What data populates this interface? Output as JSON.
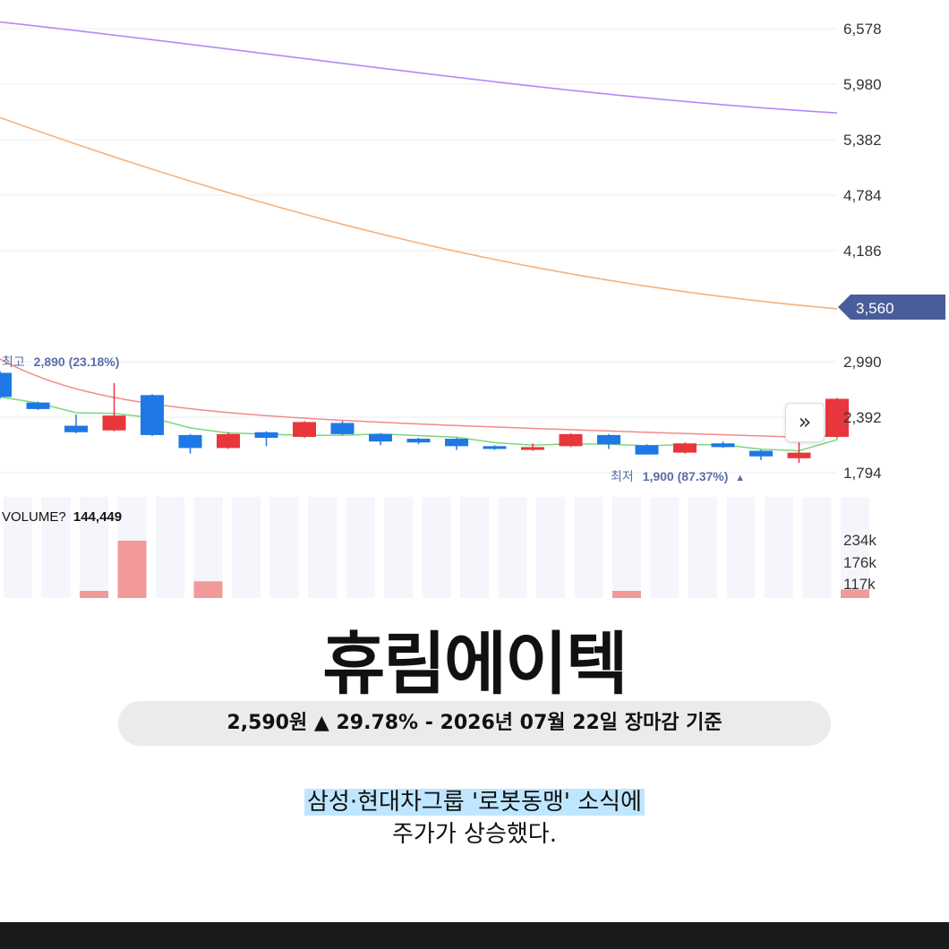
{
  "chart_data": {
    "type": "candlestick",
    "yaxis_ticks": [
      "6,578",
      "5,980",
      "5,382",
      "4,784",
      "4,186",
      "2,990",
      "2,392",
      "1,794"
    ],
    "current_price_tag": "3,560",
    "high_note": {
      "prefix": "최고",
      "value": "2,890 (23.18%)"
    },
    "low_note": {
      "prefix": "최저",
      "value": "1,900 (87.37%)",
      "marker": "▲"
    },
    "candles": [
      {
        "open": 2870,
        "close": 2610,
        "high": 2890,
        "low": 2590
      },
      {
        "open": 2550,
        "close": 2480,
        "high": 2560,
        "low": 2470
      },
      {
        "open": 2300,
        "close": 2230,
        "high": 2420,
        "low": 2220
      },
      {
        "open": 2250,
        "close": 2410,
        "high": 2760,
        "low": 2240
      },
      {
        "open": 2630,
        "close": 2200,
        "high": 2640,
        "low": 2190
      },
      {
        "open": 2200,
        "close": 2060,
        "high": 2210,
        "low": 2000
      },
      {
        "open": 2060,
        "close": 2210,
        "high": 2230,
        "low": 2050
      },
      {
        "open": 2230,
        "close": 2170,
        "high": 2240,
        "low": 2080
      },
      {
        "open": 2180,
        "close": 2340,
        "high": 2350,
        "low": 2170
      },
      {
        "open": 2330,
        "close": 2210,
        "high": 2350,
        "low": 2200
      },
      {
        "open": 2210,
        "close": 2130,
        "high": 2220,
        "low": 2090
      },
      {
        "open": 2160,
        "close": 2120,
        "high": 2170,
        "low": 2100
      },
      {
        "open": 2160,
        "close": 2080,
        "high": 2170,
        "low": 2040
      },
      {
        "open": 2080,
        "close": 2050,
        "high": 2090,
        "low": 2040
      },
      {
        "open": 2040,
        "close": 2070,
        "high": 2110,
        "low": 2030
      },
      {
        "open": 2080,
        "close": 2210,
        "high": 2220,
        "low": 2070
      },
      {
        "open": 2200,
        "close": 2100,
        "high": 2210,
        "low": 2050
      },
      {
        "open": 2090,
        "close": 1990,
        "high": 2100,
        "low": 1990
      },
      {
        "open": 2010,
        "close": 2110,
        "high": 2120,
        "low": 2000
      },
      {
        "open": 2110,
        "close": 2070,
        "high": 2130,
        "low": 2060
      },
      {
        "open": 2030,
        "close": 1970,
        "high": 2040,
        "low": 1930
      },
      {
        "open": 1950,
        "close": 2010,
        "high": 2120,
        "low": 1900
      },
      {
        "open": 2180,
        "close": 2590,
        "high": 2600,
        "low": 2170
      }
    ],
    "ma_purple": [
      6650,
      5670
    ],
    "ma_orange": [
      5620,
      3560
    ],
    "ma_red": [
      3020,
      2170
    ],
    "ma_green_last": 2190,
    "volume_label": "VOLUME?",
    "volume_value": "144,449",
    "volume_ticks": [
      "234k",
      "176k",
      "117k"
    ],
    "volumes_k": [
      0,
      0,
      15,
      120,
      0,
      35,
      0,
      0,
      0,
      0,
      0,
      0,
      0,
      0,
      0,
      0,
      15,
      0,
      0,
      0,
      0,
      0,
      18
    ],
    "colors": {
      "up": "#e8363d",
      "down": "#1e78e6",
      "purple": "#b388f5",
      "orange": "#f5b07a",
      "red": "#f28a8a",
      "green": "#7dd67d",
      "tag": "#4a5d9a"
    }
  },
  "stock": {
    "name": "휴림에이텍",
    "price_line": "2,590원 ▲ 29.78% - 2026년 07월 22일 장마감 기준"
  },
  "headline": {
    "line1": "삼성·현대차그룹 '로봇동맹' 소식에",
    "line2": "주가가 상승했다."
  }
}
